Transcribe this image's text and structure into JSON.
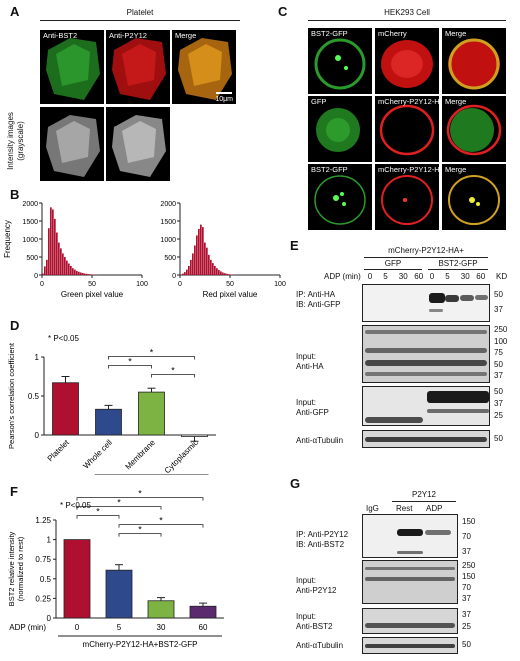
{
  "panel_letters": {
    "a": "A",
    "b": "B",
    "c": "C",
    "d": "D",
    "e": "E",
    "f": "F",
    "g": "G"
  },
  "panelA": {
    "title": "Platelet",
    "channels": [
      "Anti-BST2",
      "Anti-P2Y12",
      "Merge"
    ],
    "scale_bar": "10μm",
    "gray_label": "Intensity images (grayscale)"
  },
  "panelC": {
    "title": "HEK293 Cell",
    "rows": [
      [
        "BST2-GFP",
        "mCherry",
        "Merge"
      ],
      [
        "GFP",
        "mCherry-P2Y12-HA",
        "Merge"
      ],
      [
        "BST2-GFP",
        "mCherry-P2Y12-HA",
        "Merge"
      ]
    ]
  },
  "panelE": {
    "header": "mCherry-P2Y12-HA+",
    "groups": [
      "GFP",
      "BST2-GFP"
    ],
    "adp_label": "ADP (min)",
    "times": [
      "0",
      "5",
      "30",
      "60",
      "0",
      "5",
      "30",
      "60"
    ],
    "kd_label": "KD",
    "blots": [
      {
        "label1": "IP: Anti-HA",
        "label2": "IB: Anti-GFP",
        "markers": [
          "50",
          "37"
        ]
      },
      {
        "label1": "Input:",
        "label2": "Anti-HA",
        "markers": [
          "250",
          "100",
          "75",
          "50",
          "37"
        ]
      },
      {
        "label1": "Input:",
        "label2": "Anti-GFP",
        "markers": [
          "50",
          "37",
          "25"
        ]
      },
      {
        "label1": "Anti-αTubulin",
        "label2": "",
        "markers": [
          "50"
        ]
      }
    ]
  },
  "panelG": {
    "header": "P2Y12",
    "lanes": [
      "IgG",
      "Rest",
      "ADP"
    ],
    "blots": [
      {
        "label1": "IP: Anti-P2Y12",
        "label2": "IB: Anti-BST2",
        "markers": [
          "150",
          "70",
          "37"
        ]
      },
      {
        "label1": "Input:",
        "label2": "Anti-P2Y12",
        "markers": [
          "250",
          "150",
          "70",
          "37"
        ]
      },
      {
        "label1": "Input:",
        "label2": "Anti-BST2",
        "markers": [
          "37",
          "25"
        ]
      },
      {
        "label1": "Anti-αTubulin",
        "label2": "",
        "markers": [
          "50"
        ]
      }
    ]
  },
  "chart_data": [
    {
      "id": "B-green",
      "type": "bar",
      "title": "",
      "xlabel": "Green pixel value",
      "ylabel": "Frequency",
      "xlim": [
        0,
        100
      ],
      "ylim": [
        0,
        2000
      ],
      "yticks": [
        0,
        500,
        1000,
        1500,
        2000
      ],
      "xticks": [
        0,
        50,
        100
      ],
      "bin_width": 2,
      "x": [
        0,
        2,
        4,
        6,
        8,
        10,
        12,
        14,
        16,
        18,
        20,
        22,
        24,
        26,
        28,
        30,
        32,
        34,
        36,
        38,
        40,
        42,
        44,
        46,
        48,
        50,
        52,
        54,
        56
      ],
      "values": [
        40,
        240,
        420,
        1300,
        1880,
        1820,
        1560,
        1180,
        900,
        740,
        600,
        500,
        400,
        320,
        250,
        190,
        150,
        110,
        90,
        70,
        55,
        40,
        32,
        24,
        18,
        12,
        8,
        5,
        3
      ],
      "color": "#b01030"
    },
    {
      "id": "B-red",
      "type": "bar",
      "title": "",
      "xlabel": "Red pixel value",
      "ylabel": "",
      "xlim": [
        0,
        100
      ],
      "ylim": [
        0,
        2000
      ],
      "yticks": [
        0,
        500,
        1000,
        1500,
        2000
      ],
      "xticks": [
        0,
        50,
        100
      ],
      "bin_width": 2,
      "x": [
        0,
        2,
        4,
        6,
        8,
        10,
        12,
        14,
        16,
        18,
        20,
        22,
        24,
        26,
        28,
        30,
        32,
        34,
        36,
        38,
        40,
        42,
        44,
        46,
        48,
        50,
        52,
        54
      ],
      "values": [
        15,
        40,
        80,
        150,
        250,
        420,
        600,
        820,
        1100,
        1280,
        1400,
        1330,
        900,
        760,
        560,
        420,
        330,
        250,
        190,
        140,
        100,
        70,
        50,
        35,
        22,
        14,
        8,
        4
      ],
      "color": "#b01030"
    },
    {
      "id": "D",
      "type": "bar",
      "title": "",
      "ylabel": "Pearson's correlation coefficient",
      "xlabel": "HEK293 cell",
      "ylim": [
        0,
        1
      ],
      "yticks": [
        0,
        0.5,
        1
      ],
      "note": "* P<0.05",
      "categories": [
        "Platelet",
        "Whole cell",
        "Membrane",
        "Cytoplasmic"
      ],
      "values": [
        0.67,
        0.33,
        0.55,
        -0.02
      ],
      "errors": [
        0.08,
        0.05,
        0.05,
        0.06
      ],
      "colors": [
        "#b01030",
        "#2e4a8c",
        "#7cb342",
        "#ffffff"
      ],
      "significance": [
        {
          "from": 1,
          "to": 3,
          "label": "*"
        },
        {
          "from": 1,
          "to": 2,
          "label": "*"
        },
        {
          "from": 2,
          "to": 3,
          "label": "*"
        }
      ]
    },
    {
      "id": "F",
      "type": "bar",
      "title": "",
      "ylabel": "BST2 relative intensity (normalized to rest)",
      "xlabel": "mCherry-P2Y12-HA+BST2-GFP",
      "x_prefix": "ADP (min)",
      "ylim": [
        0,
        1.25
      ],
      "yticks": [
        0,
        0.25,
        0.5,
        0.75,
        1,
        1.25
      ],
      "note": "* P<0.05",
      "categories": [
        "0",
        "5",
        "30",
        "60"
      ],
      "values": [
        1.0,
        0.61,
        0.22,
        0.15
      ],
      "errors": [
        0,
        0.07,
        0.04,
        0.04
      ],
      "colors": [
        "#b01030",
        "#2e4a8c",
        "#7cb342",
        "#5b2a6e"
      ],
      "significance": [
        {
          "from": 0,
          "to": 3,
          "label": "*"
        },
        {
          "from": 0,
          "to": 2,
          "label": "*"
        },
        {
          "from": 0,
          "to": 1,
          "label": "*"
        },
        {
          "from": 1,
          "to": 3,
          "label": "*"
        },
        {
          "from": 1,
          "to": 2,
          "label": "*"
        }
      ]
    }
  ]
}
